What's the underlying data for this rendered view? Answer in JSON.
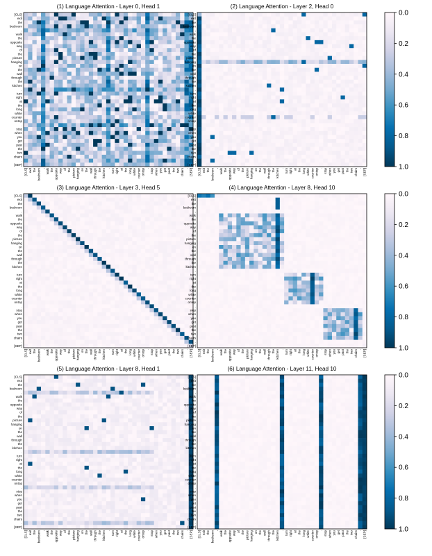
{
  "tokens": [
    "[CLS]",
    "exit",
    "the",
    "bedroom",
    ",",
    "walk",
    "the",
    "opposite",
    "way",
    "of",
    "the",
    "picture",
    "hanging",
    "on",
    "the",
    "wall",
    "through",
    "the",
    "kitchen",
    ".",
    "turn",
    "right",
    "at",
    "the",
    "long",
    "white",
    "counter",
    "ontop",
    ".",
    "stop",
    "when",
    "you",
    "get",
    "past",
    "the",
    "two",
    "chairs",
    ".",
    "[SEP]"
  ],
  "colorbar": {
    "ticks": [
      "0.0",
      "0.2",
      "0.4",
      "0.6",
      "0.8",
      "1.0"
    ],
    "colors": [
      "#fff7fb",
      "#ece7f2",
      "#d0d1e6",
      "#a6bddb",
      "#74a9cf",
      "#3690c0",
      "#0570b0",
      "#045a8d",
      "#023858"
    ]
  },
  "chart_data": [
    {
      "type": "heatmap",
      "title": "(1) Language Attention - Layer 0, Head 1",
      "vmin": 0,
      "vmax": 1,
      "pattern": "diffuse",
      "notes": "near-uniform attention; dense blue bands across most rows, darker at punctuation and [SEP]"
    },
    {
      "type": "heatmap",
      "title": "(2) Language Attention - Layer 2, Head 0",
      "vmin": 0,
      "vmax": 1,
      "pattern": "first-column",
      "notes": "strong attention to [CLS] (first column) for most tokens; horizontal band at row 'hanging'"
    },
    {
      "type": "heatmap",
      "title": "(3) Language Attention - Layer 3, Head 5",
      "vmin": 0,
      "vmax": 1,
      "pattern": "diagonal",
      "notes": "attention to the previous/next token (diagonal)"
    },
    {
      "type": "heatmap",
      "title": "(4) Language Attention - Layer 8, Head 10",
      "vmin": 0,
      "vmax": 1,
      "pattern": "phrase-blocks",
      "notes": "phrase-level blocks; 'kitchen' column strong for first phrase rows"
    },
    {
      "type": "heatmap",
      "title": "(5) Language Attention - Layer 8, Head 1",
      "vmin": 0,
      "vmax": 1,
      "pattern": "sep-column",
      "notes": "strong attention to [SEP] (last column)"
    },
    {
      "type": "heatmap",
      "title": "(6) Language Attention - Layer 11, Head 10",
      "vmin": 0,
      "vmax": 1,
      "pattern": "punct-columns",
      "notes": "vertical stripes on punctuation tokens ',', '.', and [SEP]"
    }
  ]
}
